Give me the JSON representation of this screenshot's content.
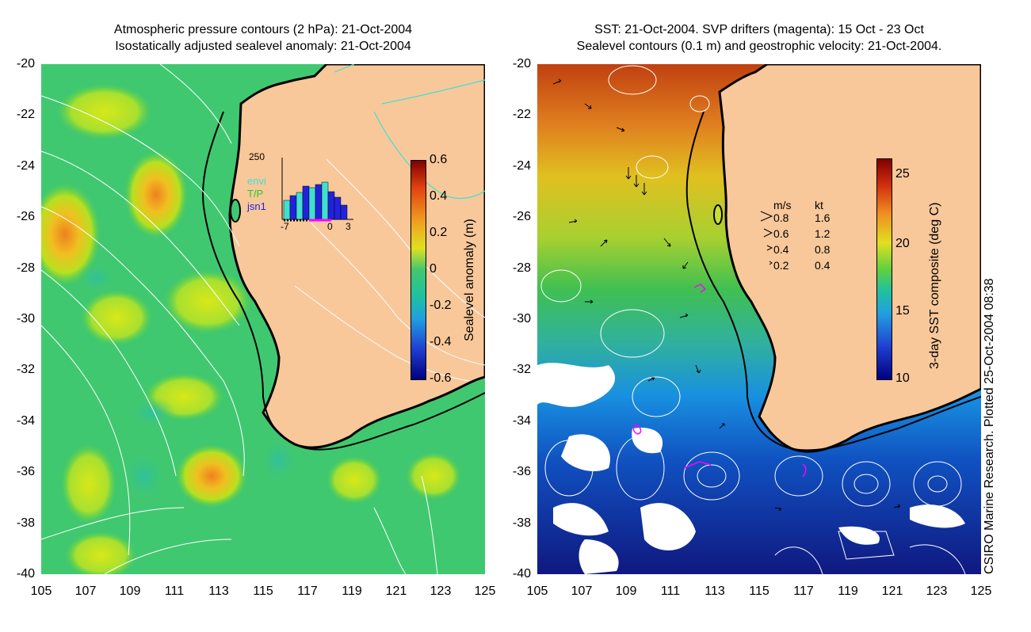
{
  "left_panel": {
    "title_line1": "Atmospheric pressure contours (2 hPa): 21-Oct-2004",
    "title_line2": "Isostatically adjusted sealevel anomaly: 21-Oct-2004",
    "colorbar_label": "Sealevel anomaly (m)",
    "colorbar_ticks": [
      "0.6",
      "0.4",
      "0.2",
      "0",
      "-0.2",
      "-0.4",
      "-0.6"
    ],
    "inset": {
      "ymax_label": "250",
      "x_ticks": [
        "-7",
        "0",
        "3"
      ],
      "legend": [
        "envi",
        "T/P",
        "jsn1"
      ],
      "legend_colors": [
        "#40e0d0",
        "#22cc22",
        "#2222dd"
      ]
    }
  },
  "right_panel": {
    "title_line1": "SST: 21-Oct-2004. SVP drifters (magenta): 15 Oct - 23 Oct",
    "title_line2": "Sealevel contours (0.1 m) and geostrophic velocity: 21-Oct-2004.",
    "colorbar_label": "3-day SST composite (deg C)",
    "colorbar_ticks": [
      "25",
      "20",
      "15",
      "10"
    ],
    "velocity_legend": {
      "header_ms": "m/s",
      "header_kt": "kt",
      "rows": [
        {
          "ms": "0.8",
          "kt": "1.6"
        },
        {
          "ms": "0.6",
          "kt": "1.2"
        },
        {
          "ms": "0.4",
          "kt": "0.8"
        },
        {
          "ms": "0.2",
          "kt": "0.4"
        }
      ]
    }
  },
  "axes": {
    "y_ticks": [
      "-20",
      "-22",
      "-24",
      "-26",
      "-28",
      "-30",
      "-32",
      "-34",
      "-36",
      "-38",
      "-40"
    ],
    "x_ticks": [
      "105",
      "107",
      "109",
      "111",
      "113",
      "115",
      "117",
      "119",
      "121",
      "123",
      "125"
    ]
  },
  "credit": "CSIRO Marine Research. Plotted 25-Oct-2004 08:38",
  "colors": {
    "land": "#f8c89a",
    "coast": "#000000",
    "drifter": "#ff00ff"
  }
}
